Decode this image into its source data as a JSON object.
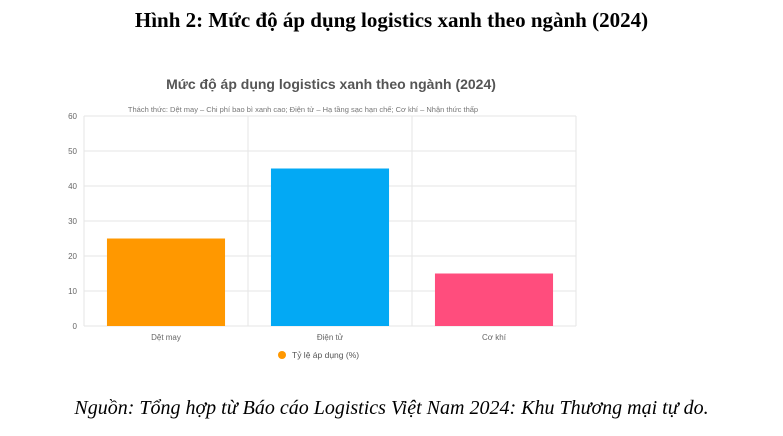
{
  "figure": {
    "title": "Hình 2: Mức độ áp dụng logistics xanh theo ngành (2024)",
    "source": "Nguồn: Tổng hợp từ Báo cáo Logistics Việt Nam 2024: Khu Thương mại tự do."
  },
  "chart_data": {
    "type": "bar",
    "title": "Mức độ áp dụng logistics xanh theo ngành (2024)",
    "subtitle": "Thách thức: Dệt may – Chi phí bao bì xanh cao; Điện tử – Hạ tầng sạc hạn chế; Cơ khí – Nhận thức thấp",
    "categories": [
      "Dệt may",
      "Điện tử",
      "Cơ khí"
    ],
    "series": [
      {
        "name": "Tỷ lệ áp dụng (%)",
        "values": [
          25,
          45,
          15
        ]
      }
    ],
    "bar_colors": [
      "#ff9800",
      "#03a9f4",
      "#ff4d7d"
    ],
    "legend_color": "#ff9800",
    "xlabel": "",
    "ylabel": "",
    "ylim": [
      0,
      60
    ],
    "yticks": [
      0,
      10,
      20,
      30,
      40,
      50,
      60
    ],
    "grid": true,
    "legend_position": "bottom"
  }
}
